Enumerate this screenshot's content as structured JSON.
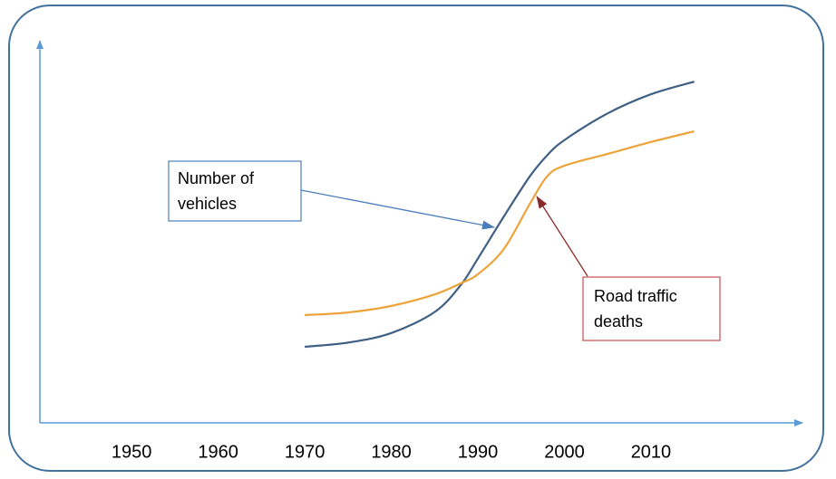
{
  "chart_data": {
    "type": "line",
    "x": [
      1970,
      1975,
      1980,
      1985,
      1988,
      1990,
      1993,
      1996,
      1998,
      2000,
      2005,
      2010,
      2015
    ],
    "series": [
      {
        "name": "Number of vehicles",
        "color": "#3f5f85",
        "values": [
          19.9,
          21,
          23.5,
          29,
          36,
          43,
          54,
          64.5,
          70,
          74,
          81,
          86,
          89.3
        ]
      },
      {
        "name": "Road traffic deaths",
        "color": "#eda33a",
        "values": [
          28.2,
          28.9,
          30.6,
          33.6,
          36.5,
          38.9,
          45.5,
          57.3,
          64.5,
          67.3,
          70.4,
          73.5,
          76.3
        ]
      }
    ],
    "xlim": [
      1939.4,
      2027.5
    ],
    "xticks": [
      1950,
      1960,
      1970,
      1980,
      1990,
      2000,
      2010
    ],
    "ylim": [
      0,
      100
    ],
    "annotations": [
      {
        "lines": [
          "Number of",
          "vehicles"
        ],
        "color": "#4a7ebb"
      },
      {
        "lines": [
          "Road traffic",
          "deaths"
        ],
        "color": "#c0504d"
      }
    ]
  }
}
